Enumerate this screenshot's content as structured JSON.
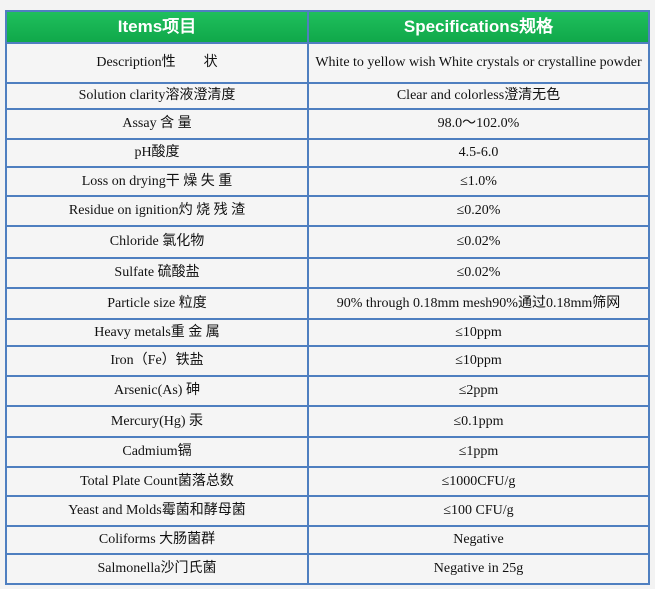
{
  "header": {
    "items": "Items项目",
    "specs": "Specifications规格"
  },
  "rows": [
    {
      "item": "Description性　　状",
      "spec": "White to yellow  wish White crystals or crystalline powder"
    },
    {
      "item": "Solution clarity溶液澄清度",
      "spec": "Clear and colorless澄清无色"
    },
    {
      "item": "Assay 含  量",
      "spec": "98.0～102.0%"
    },
    {
      "item": "pH酸度",
      "spec": "4.5-6.0"
    },
    {
      "item": "Loss on drying干 燥 失 重",
      "spec": "≤1.0%"
    },
    {
      "item": "Residue on ignition灼 烧 残 渣",
      "spec": "≤0.20%"
    },
    {
      "item": "Chloride 氯化物",
      "spec": "≤0.02%"
    },
    {
      "item": "Sulfate 硫酸盐",
      "spec": "≤0.02%"
    },
    {
      "item": "Particle size 粒度",
      "spec": "90% through 0.18mm mesh90%通过0.18mm筛网"
    },
    {
      "item": "Heavy metals重  金  属",
      "spec": "≤10ppm"
    },
    {
      "item": "Iron（Fe）铁盐",
      "spec": "≤10ppm"
    },
    {
      "item": "Arsenic(As) 砷",
      "spec": "≤2ppm"
    },
    {
      "item": "Mercury(Hg) 汞",
      "spec": "≤0.1ppm"
    },
    {
      "item": "Cadmium镉",
      "spec": "≤1ppm"
    },
    {
      "item": "Total Plate Count菌落总数",
      "spec": "≤1000CFU/g"
    },
    {
      "item": "Yeast and Molds霉菌和酵母菌",
      "spec": "≤100 CFU/g"
    },
    {
      "item": "Coliforms 大肠菌群",
      "spec": "Negative"
    },
    {
      "item": "Salmonella沙门氏菌",
      "spec": "Negative in 25g"
    }
  ]
}
